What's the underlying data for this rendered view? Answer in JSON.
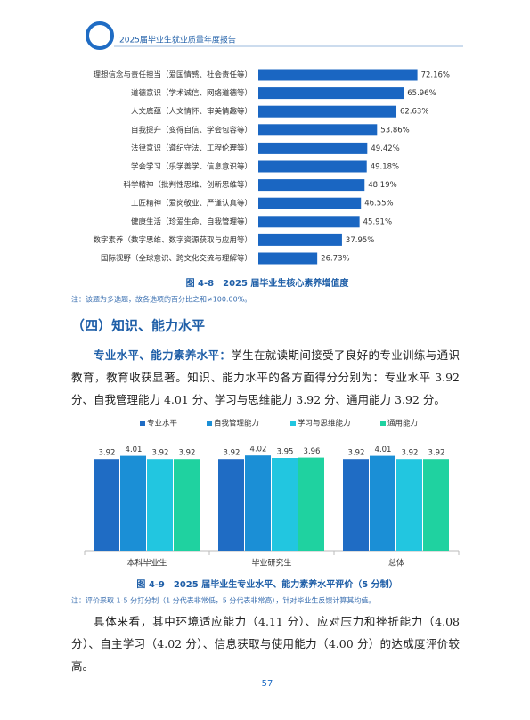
{
  "header": {
    "title": "2025届毕业生就业质量年度报告"
  },
  "chart_data": [
    {
      "type": "bar",
      "orientation": "horizontal",
      "title": "图 4-8　2025 届毕业生核心素养增值度",
      "note": "注：该题为多选题，故各选项的百分比之和≠100.00%。",
      "categories": [
        "理想信念与责任担当（爱国情感、社会责任等）",
        "道德意识（学术诚信、网络道德等）",
        "人文底蕴（人文情怀、审美情趣等）",
        "自我提升（变得自信、学会包容等）",
        "法律意识（遵纪守法、工程伦理等）",
        "学会学习（乐学善学、信息意识等）",
        "科学精神（批判性思维、创新思维等）",
        "工匠精神（爱岗敬业、严谨认真等）",
        "健康生活（珍爱生命、自我管理等）",
        "数字素养（数字思维、数字资源获取与应用等）",
        "国际视野（全球意识、跨文化交流与理解等）"
      ],
      "values": [
        72.16,
        65.96,
        62.63,
        53.86,
        49.42,
        49.18,
        48.19,
        46.55,
        45.91,
        37.95,
        26.73
      ],
      "value_labels": [
        "72.16%",
        "65.96%",
        "62.63%",
        "53.86%",
        "49.42%",
        "49.18%",
        "48.19%",
        "46.55%",
        "45.91%",
        "37.95%",
        "26.73%"
      ],
      "color": "#1a66c2",
      "xlim": [
        0,
        80
      ]
    },
    {
      "type": "bar",
      "title": "图 4-9　2025 届毕业生专业水平、能力素养水平评价（5 分制）",
      "note": "注：评价采取 1-5 分打分制（1 分代表非常低，5 分代表非常高），针对毕业生反馈计算其均值。",
      "categories": [
        "本科毕业生",
        "毕业研究生",
        "总体"
      ],
      "series": [
        {
          "name": "专业水平",
          "color": "#1f6cc4",
          "values": [
            3.92,
            3.92,
            3.92
          ]
        },
        {
          "name": "自我管理能力",
          "color": "#1b8fd6",
          "values": [
            4.01,
            4.02,
            4.01
          ]
        },
        {
          "name": "学习与思维能力",
          "color": "#22c6e0",
          "values": [
            3.92,
            3.95,
            3.92
          ]
        },
        {
          "name": "通用能力",
          "color": "#1fd2a0",
          "values": [
            3.92,
            3.96,
            3.92
          ]
        }
      ],
      "ylim": [
        1.35,
        4.35
      ],
      "legend": "top"
    }
  ],
  "section_heading": "（四）知识、能力水平",
  "paragraphs": [
    {
      "lead": "专业水平、能力素养水平：",
      "text": "学生在就读期间接受了良好的专业训练与通识教育，教育收获显著。知识、能力水平的各方面得分分别为：专业水平 3.92 分、自我管理能力 4.01 分、学习与思维能力 3.92 分、通用能力 3.92 分。"
    },
    {
      "text": "具体来看，其中环境适应能力（4.11 分）、应对压力和挫折能力（4.08 分）、自主学习（4.02 分）、信息获取与使用能力（4.00 分）的达成度评价较高。"
    }
  ],
  "page_number": "57"
}
